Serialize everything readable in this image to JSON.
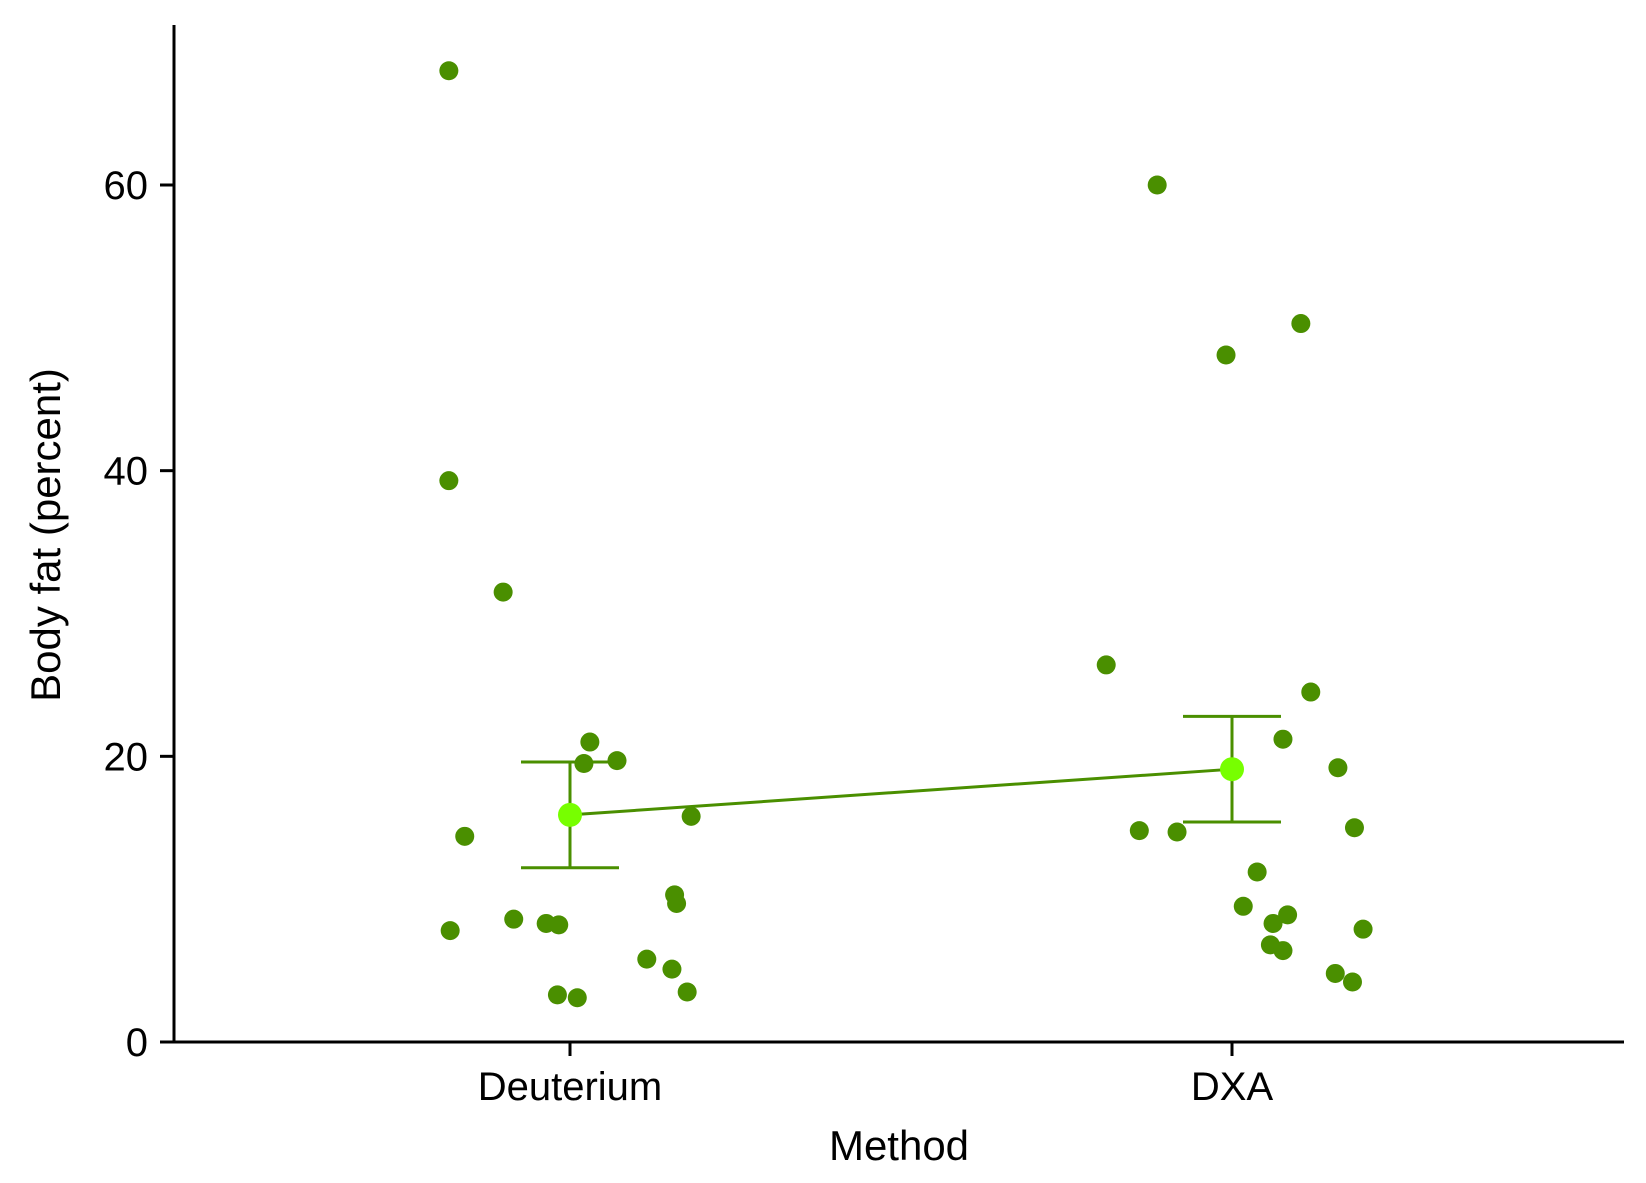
{
  "chart_data": {
    "type": "scatter",
    "title": "",
    "xlabel": "Method",
    "ylabel": "Body fat (percent)",
    "categories": [
      "Deuterium",
      "DXA"
    ],
    "ylim": [
      0,
      71
    ],
    "yticks": [
      0,
      20,
      40,
      60
    ],
    "grid": false,
    "legend": "none",
    "colors": {
      "points": "#4a8f00",
      "mean": "#77ff00",
      "line": "#4a8f00",
      "axis": "#000000"
    },
    "series": [
      {
        "category": "Deuterium",
        "points": [
          {
            "jitter": -0.183,
            "y": 68.0
          },
          {
            "jitter": -0.183,
            "y": 39.3
          },
          {
            "jitter": -0.101,
            "y": 31.5
          },
          {
            "jitter": -0.159,
            "y": 14.4
          },
          {
            "jitter": -0.181,
            "y": 7.8
          },
          {
            "jitter": -0.085,
            "y": 8.6
          },
          {
            "jitter": -0.036,
            "y": 8.3
          },
          {
            "jitter": -0.017,
            "y": 8.2
          },
          {
            "jitter": 0.03,
            "y": 21.0
          },
          {
            "jitter": 0.021,
            "y": 19.5
          },
          {
            "jitter": 0.071,
            "y": 19.7
          },
          {
            "jitter": 0.183,
            "y": 15.8
          },
          {
            "jitter": 0.158,
            "y": 10.3
          },
          {
            "jitter": 0.161,
            "y": 9.7
          },
          {
            "jitter": 0.116,
            "y": 5.8
          },
          {
            "jitter": 0.154,
            "y": 5.1
          },
          {
            "jitter": 0.177,
            "y": 3.5
          },
          {
            "jitter": -0.019,
            "y": 3.3
          },
          {
            "jitter": 0.011,
            "y": 3.1
          }
        ],
        "mean": 15.9,
        "ci": [
          12.2,
          19.6
        ]
      },
      {
        "category": "DXA",
        "points": [
          {
            "jitter": -0.113,
            "y": 60.0
          },
          {
            "jitter": -0.009,
            "y": 48.1
          },
          {
            "jitter": 0.104,
            "y": 50.3
          },
          {
            "jitter": -0.19,
            "y": 26.4
          },
          {
            "jitter": 0.119,
            "y": 24.5
          },
          {
            "jitter": 0.077,
            "y": 21.2
          },
          {
            "jitter": 0.16,
            "y": 19.2
          },
          {
            "jitter": -0.14,
            "y": 14.8
          },
          {
            "jitter": -0.083,
            "y": 14.7
          },
          {
            "jitter": 0.185,
            "y": 15.0
          },
          {
            "jitter": 0.038,
            "y": 11.9
          },
          {
            "jitter": 0.017,
            "y": 9.5
          },
          {
            "jitter": 0.062,
            "y": 8.3
          },
          {
            "jitter": 0.084,
            "y": 8.9
          },
          {
            "jitter": 0.198,
            "y": 7.9
          },
          {
            "jitter": 0.058,
            "y": 6.8
          },
          {
            "jitter": 0.077,
            "y": 6.4
          },
          {
            "jitter": 0.156,
            "y": 4.8
          },
          {
            "jitter": 0.182,
            "y": 4.2
          }
        ],
        "mean": 19.1,
        "ci": [
          15.4,
          22.8
        ]
      }
    ]
  }
}
